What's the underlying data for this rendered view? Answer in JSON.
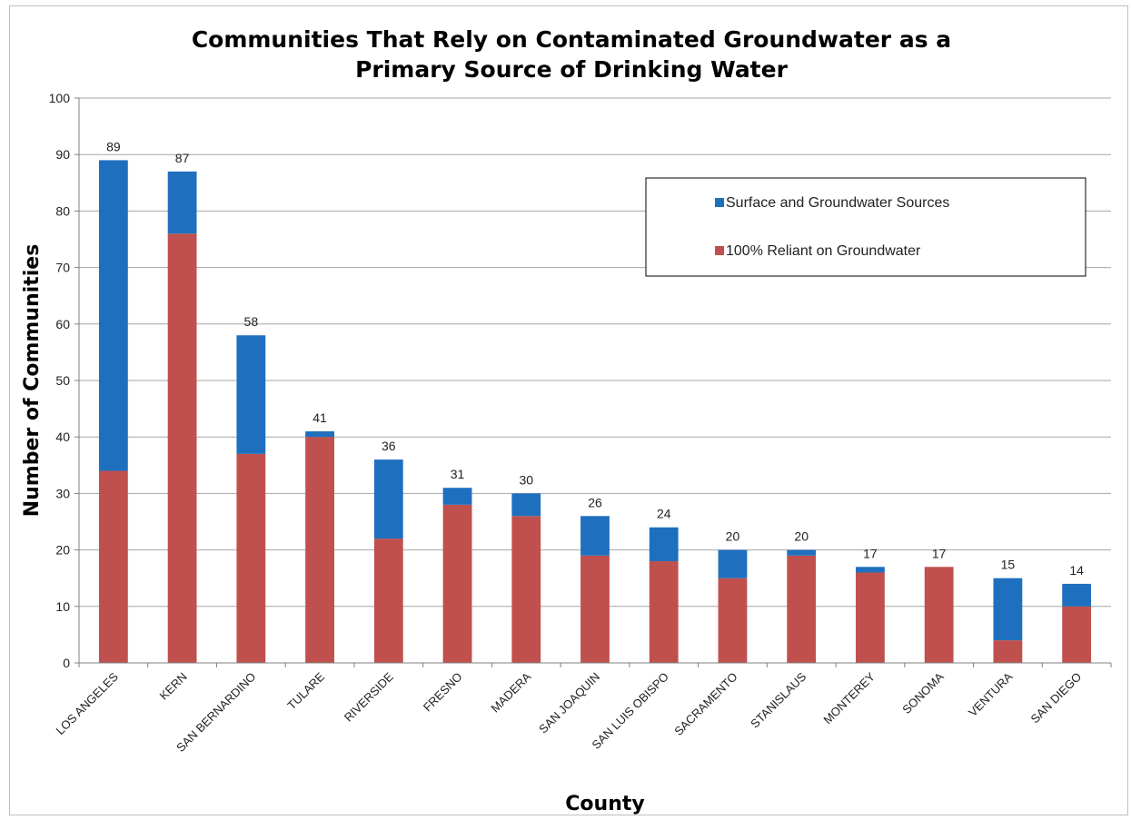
{
  "chart_data": {
    "type": "bar",
    "stacked": true,
    "title_lines": [
      "Communities That Rely on Contaminated Groundwater as a",
      "Primary Source of Drinking Water"
    ],
    "xlabel": "County",
    "ylabel": "Number of Communities",
    "ylim": [
      0,
      100
    ],
    "yticks": [
      0,
      10,
      20,
      30,
      40,
      50,
      60,
      70,
      80,
      90,
      100
    ],
    "grid": true,
    "legend_placement": "top-right",
    "categories": [
      "LOS ANGELES",
      "KERN",
      "SAN BERNARDINO",
      "TULARE",
      "RIVERSIDE",
      "FRESNO",
      "MADERA",
      "SAN JOAQUIN",
      "SAN LUIS OBISPO",
      "SACRAMENTO",
      "STANISLAUS",
      "MONTEREY",
      "SONOMA",
      "VENTURA",
      "SAN DIEGO"
    ],
    "series": [
      {
        "name": "100% Reliant on Groundwater",
        "color": "#c0504d",
        "values": [
          34,
          76,
          37,
          40,
          22,
          28,
          26,
          19,
          18,
          15,
          19,
          16,
          17,
          4,
          10
        ]
      },
      {
        "name": "Surface and Groundwater Sources",
        "color": "#1f6fbf",
        "values": [
          55,
          11,
          21,
          1,
          14,
          3,
          4,
          7,
          6,
          5,
          1,
          1,
          0,
          11,
          4
        ]
      }
    ],
    "totals": [
      89,
      87,
      58,
      41,
      36,
      31,
      30,
      26,
      24,
      20,
      20,
      17,
      17,
      15,
      14
    ],
    "legend_order": [
      "Surface and Groundwater Sources",
      "100% Reliant on Groundwater"
    ]
  }
}
